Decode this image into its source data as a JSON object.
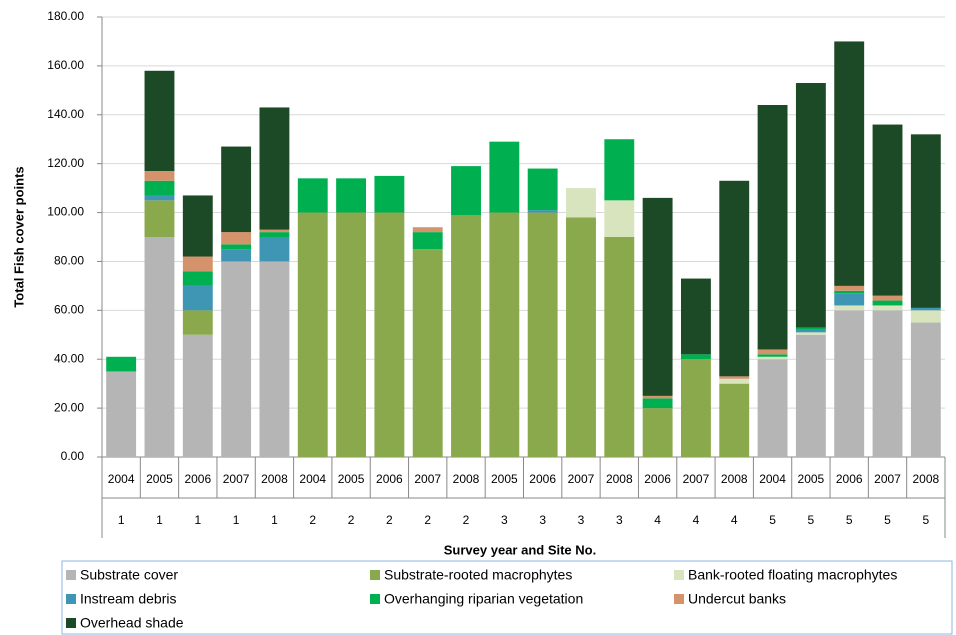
{
  "chart_data": {
    "type": "stacked-bar",
    "y_label": "Total Fish cover points",
    "x_label": "Survey year and Site No.",
    "categories": [
      "2004",
      "2005",
      "2006",
      "2007",
      "2008",
      "2004",
      "2005",
      "2006",
      "2007",
      "2008",
      "2005",
      "2006",
      "2007",
      "2008",
      "2006",
      "2007",
      "2008",
      "2004",
      "2005",
      "2006",
      "2007",
      "2008"
    ],
    "sites": [
      "1",
      "1",
      "1",
      "1",
      "1",
      "2",
      "2",
      "2",
      "2",
      "2",
      "3",
      "3",
      "3",
      "3",
      "4",
      "4",
      "4",
      "5",
      "5",
      "5",
      "5",
      "5"
    ],
    "ylim": [
      0,
      180
    ],
    "yticks": [
      {
        "value": 0,
        "label": "0.00"
      },
      {
        "value": 20,
        "label": "20.00"
      },
      {
        "value": 40,
        "label": "40.00"
      },
      {
        "value": 60,
        "label": "60.00"
      },
      {
        "value": 80,
        "label": "80.00"
      },
      {
        "value": 100,
        "label": "100.00"
      },
      {
        "value": 120,
        "label": "120.00"
      },
      {
        "value": 140,
        "label": "140.00"
      },
      {
        "value": 160,
        "label": "160.00"
      },
      {
        "value": 180,
        "label": "180.00"
      }
    ],
    "grid": true,
    "series": [
      {
        "name": "Substrate cover",
        "color": "#b5b5b5",
        "values": [
          35,
          90,
          50,
          80,
          80,
          0,
          0,
          0,
          0,
          0,
          0,
          0,
          0,
          0,
          0,
          0,
          0,
          40,
          50,
          60,
          60,
          55
        ]
      },
      {
        "name": "Substrate-rooted macrophytes",
        "color": "#8aa84c",
        "values": [
          0,
          15,
          10,
          0,
          0,
          100,
          100,
          100,
          85,
          99,
          100,
          100,
          98,
          90,
          20,
          40,
          30,
          0,
          0,
          0,
          0,
          0
        ]
      },
      {
        "name": "Bank-rooted floating macrophytes",
        "color": "#d7e4bd",
        "values": [
          0,
          0,
          0,
          0,
          0,
          0,
          0,
          0,
          0,
          0,
          0,
          0,
          12,
          15,
          0,
          0,
          2,
          1,
          1,
          2,
          2,
          5
        ]
      },
      {
        "name": "Instream debris",
        "color": "#3f96b4",
        "values": [
          0,
          2,
          10,
          5,
          10,
          0,
          0,
          0,
          0,
          0,
          0,
          1,
          0,
          0,
          0,
          0,
          0,
          0,
          1,
          5,
          0,
          1
        ]
      },
      {
        "name": "Overhanging riparian vegetation",
        "color": "#00b050",
        "values": [
          6,
          6,
          6,
          2,
          2,
          14,
          14,
          15,
          7,
          20,
          29,
          17,
          0,
          25,
          4,
          2,
          0,
          1,
          1,
          1,
          2,
          0
        ]
      },
      {
        "name": "Undercut banks",
        "color": "#d4936a",
        "values": [
          0,
          4,
          6,
          5,
          1,
          0,
          0,
          0,
          2,
          0,
          0,
          0,
          0,
          0,
          1,
          0,
          1,
          2,
          0,
          2,
          2,
          0
        ]
      },
      {
        "name": "Overhead shade",
        "color": "#1d4a26",
        "values": [
          0,
          41,
          25,
          35,
          50,
          0,
          0,
          0,
          0,
          0,
          0,
          0,
          0,
          0,
          81,
          31,
          80,
          100,
          100,
          100,
          70,
          71
        ]
      }
    ]
  }
}
